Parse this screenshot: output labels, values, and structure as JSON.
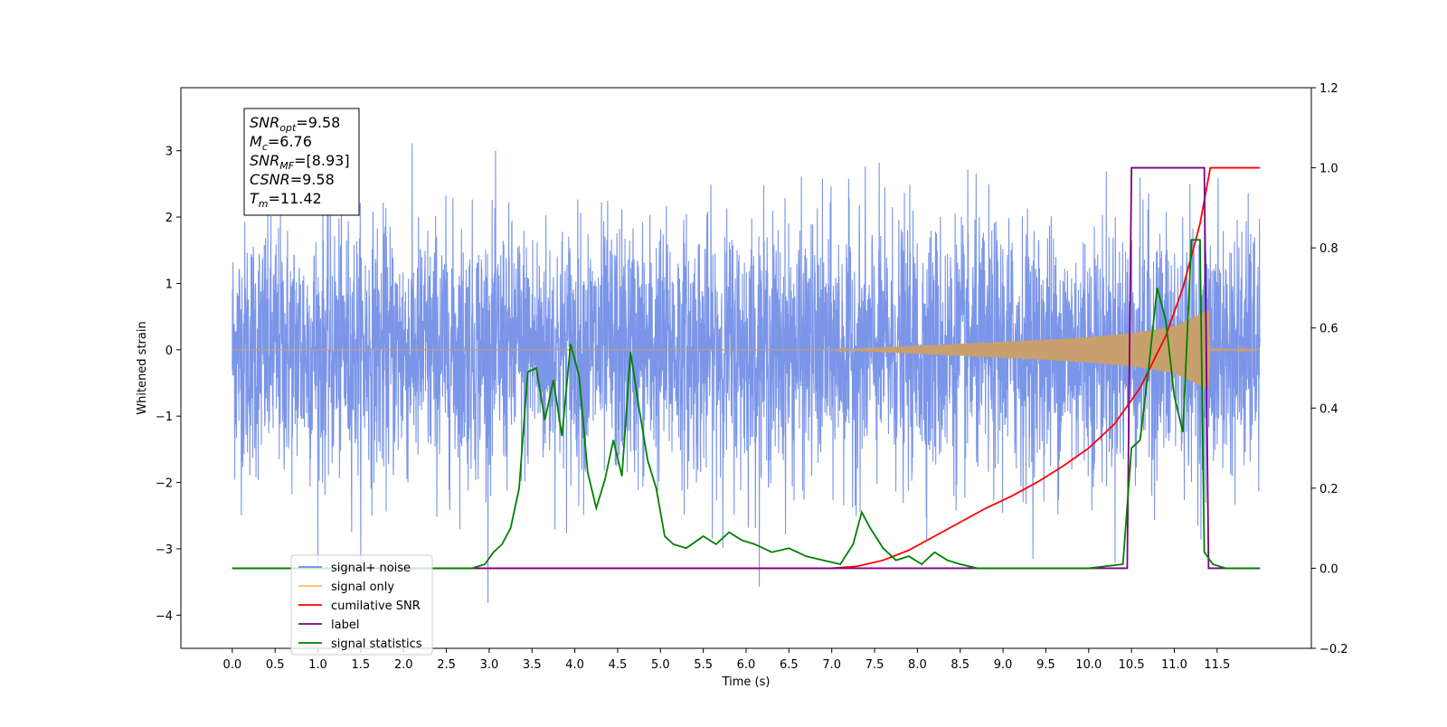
{
  "chart_data": {
    "type": "line",
    "xlabel": "Time (s)",
    "ylabel": "Whitened strain",
    "xlim": [
      -0.6,
      12.6
    ],
    "ylim": [
      -4.5,
      3.95
    ],
    "y2lim": [
      -0.2,
      1.2
    ],
    "x_ticks": [
      "0.0",
      "0.5",
      "1.0",
      "1.5",
      "2.0",
      "2.5",
      "3.0",
      "3.5",
      "4.0",
      "4.5",
      "5.0",
      "5.5",
      "6.0",
      "6.5",
      "7.0",
      "7.5",
      "8.0",
      "8.5",
      "9.0",
      "9.5",
      "10.0",
      "10.5",
      "11.0",
      "11.5"
    ],
    "y_ticks": [
      "−4",
      "−3",
      "−2",
      "−1",
      "0",
      "1",
      "2",
      "3"
    ],
    "y2_ticks": [
      "−0.2",
      "0.0",
      "0.2",
      "0.4",
      "0.6",
      "0.8",
      "1.0",
      "1.2"
    ],
    "annotation": {
      "lines": [
        {
          "base": "SNR",
          "sub": "opt",
          "value": "=9.58"
        },
        {
          "base": "M",
          "sub": "c",
          "value": "=6.76"
        },
        {
          "base": "SNR",
          "sub": "MF",
          "value": "=[8.93]"
        },
        {
          "base": "CSNR",
          "sub": "",
          "value": "=9.58"
        },
        {
          "base": "T",
          "sub": "m",
          "value": "=11.42"
        }
      ]
    },
    "legend": {
      "placement": "lower-left",
      "entries": [
        {
          "label": "signal+ noise",
          "color": "#6f8be8"
        },
        {
          "label": "signal only",
          "color": "#ffbf5e"
        },
        {
          "label": "cumilative SNR",
          "color": "#ff0000"
        },
        {
          "label": "label",
          "color": "#800080"
        },
        {
          "label": "signal statistics",
          "color": "#008000"
        }
      ]
    },
    "series": [
      {
        "name": "signal+ noise",
        "axis": "left",
        "color": "#7b95e8",
        "duration": 12.0,
        "amplitude_std": 0.95,
        "x_range": [
          0.0,
          12.0
        ]
      },
      {
        "name": "signal only",
        "axis": "left",
        "color": "#c8a06e",
        "envelope": {
          "x": [
            0,
            7.0,
            7.5,
            8.0,
            8.5,
            9.0,
            9.5,
            10.0,
            10.5,
            11.0,
            11.4,
            11.42,
            11.5,
            12.0
          ],
          "y": [
            0.0,
            0.0,
            0.03,
            0.06,
            0.09,
            0.12,
            0.15,
            0.19,
            0.25,
            0.35,
            0.6,
            0.0,
            0.02,
            0.0
          ]
        }
      },
      {
        "name": "cumilative SNR",
        "axis": "right",
        "color": "#ff0000",
        "x": [
          0,
          7.0,
          7.3,
          7.6,
          7.9,
          8.2,
          8.5,
          8.8,
          9.1,
          9.4,
          9.7,
          10.0,
          10.3,
          10.6,
          10.9,
          11.1,
          11.3,
          11.42,
          12.0
        ],
        "y": [
          0.0,
          0.0,
          0.005,
          0.02,
          0.045,
          0.08,
          0.115,
          0.15,
          0.18,
          0.215,
          0.255,
          0.3,
          0.36,
          0.45,
          0.58,
          0.7,
          0.86,
          1.0,
          1.0
        ]
      },
      {
        "name": "label",
        "axis": "right",
        "color": "#800080",
        "x": [
          0,
          10.45,
          10.5,
          11.35,
          11.4,
          12.0
        ],
        "y": [
          0.0,
          0.0,
          1.0,
          1.0,
          0.0,
          0.0
        ]
      },
      {
        "name": "signal statistics",
        "axis": "right",
        "color": "#008000",
        "x": [
          0,
          2.8,
          2.95,
          3.05,
          3.15,
          3.25,
          3.35,
          3.45,
          3.55,
          3.65,
          3.75,
          3.85,
          3.95,
          4.05,
          4.15,
          4.25,
          4.35,
          4.45,
          4.55,
          4.65,
          4.75,
          4.85,
          4.95,
          5.05,
          5.15,
          5.3,
          5.5,
          5.65,
          5.8,
          5.95,
          6.1,
          6.3,
          6.5,
          6.7,
          6.9,
          7.1,
          7.25,
          7.35,
          7.45,
          7.6,
          7.75,
          7.9,
          8.05,
          8.2,
          8.35,
          8.5,
          8.7,
          9.0,
          9.5,
          10.0,
          10.4,
          10.5,
          10.6,
          10.7,
          10.8,
          10.9,
          11.0,
          11.1,
          11.2,
          11.3,
          11.35,
          11.45,
          11.6,
          12.0
        ],
        "y": [
          0.0,
          0.0,
          0.01,
          0.04,
          0.06,
          0.1,
          0.2,
          0.49,
          0.5,
          0.37,
          0.47,
          0.33,
          0.56,
          0.48,
          0.24,
          0.15,
          0.22,
          0.32,
          0.23,
          0.54,
          0.4,
          0.27,
          0.2,
          0.08,
          0.06,
          0.05,
          0.08,
          0.06,
          0.09,
          0.07,
          0.06,
          0.04,
          0.05,
          0.03,
          0.02,
          0.01,
          0.06,
          0.14,
          0.1,
          0.05,
          0.02,
          0.03,
          0.01,
          0.04,
          0.02,
          0.01,
          0.0,
          0.0,
          0.0,
          0.0,
          0.01,
          0.3,
          0.32,
          0.5,
          0.7,
          0.62,
          0.43,
          0.34,
          0.82,
          0.82,
          0.04,
          0.01,
          0.0,
          0.0
        ]
      }
    ]
  }
}
